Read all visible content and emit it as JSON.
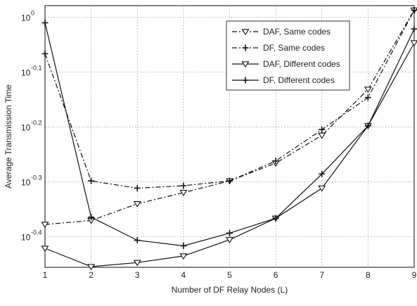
{
  "chart_data": {
    "type": "line",
    "title": "",
    "xlabel": "Number of DF Relay Nodes (L)",
    "ylabel": "Average Transmission Time",
    "x": [
      1,
      2,
      3,
      4,
      5,
      6,
      7,
      8,
      9
    ],
    "xlim": [
      1,
      9
    ],
    "ylim": [
      0.35,
      1.05
    ],
    "yscale": "log",
    "xticks": [
      "1",
      "2",
      "3",
      "4",
      "5",
      "6",
      "7",
      "8",
      "9"
    ],
    "yticks": [
      {
        "value": 1.0,
        "base": "10",
        "exp": "0"
      },
      {
        "value": 0.7943,
        "base": "10",
        "exp": "-0.1"
      },
      {
        "value": 0.631,
        "base": "10",
        "exp": "-0.2"
      },
      {
        "value": 0.5012,
        "base": "10",
        "exp": "-0.3"
      },
      {
        "value": 0.3981,
        "base": "10",
        "exp": "-0.4"
      }
    ],
    "grid": true,
    "legend_position": "top-right",
    "series": [
      {
        "name": "DAF, Same codes",
        "line": "dashdot",
        "marker": "triangle-down",
        "values": [
          0.419,
          0.426,
          0.457,
          0.479,
          0.503,
          0.542,
          0.609,
          0.739,
          1.03
        ]
      },
      {
        "name": "DF, Same codes",
        "line": "dashdot",
        "marker": "plus",
        "values": [
          0.858,
          0.503,
          0.488,
          0.493,
          0.503,
          0.547,
          0.624,
          0.714,
          1.03
        ]
      },
      {
        "name": "DAF, Different codes",
        "line": "solid",
        "marker": "triangle-down",
        "values": [
          0.379,
          0.351,
          0.357,
          0.367,
          0.393,
          0.43,
          0.488,
          0.634,
          0.898
        ]
      },
      {
        "name": "DF, Different codes",
        "line": "solid",
        "marker": "plus",
        "values": [
          0.977,
          0.432,
          0.392,
          0.383,
          0.404,
          0.43,
          0.518,
          0.634,
          0.952
        ]
      }
    ]
  }
}
